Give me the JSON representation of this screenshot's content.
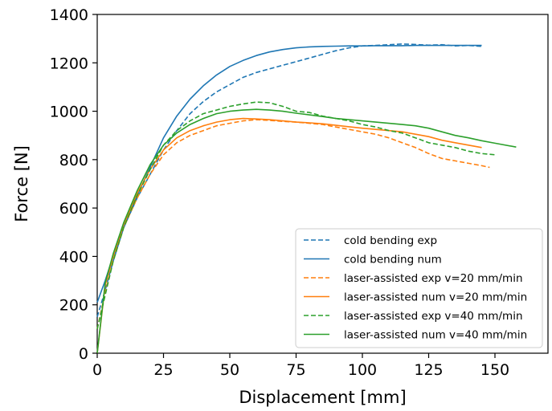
{
  "chart_data": {
    "type": "line",
    "title": "",
    "xlabel": "Displacement [mm]",
    "ylabel": "Force [N]",
    "xlim": [
      0,
      170
    ],
    "ylim": [
      0,
      1400
    ],
    "xticks": [
      0,
      25,
      50,
      75,
      100,
      125,
      150
    ],
    "yticks": [
      0,
      200,
      400,
      600,
      800,
      1000,
      1200,
      1400
    ],
    "grid": false,
    "legend_position": "lower-right",
    "series": [
      {
        "name": "cold bending exp",
        "color": "#1f77b4",
        "style": "dashed",
        "x": [
          0,
          3,
          6,
          10,
          15,
          20,
          25,
          30,
          35,
          40,
          45,
          50,
          55,
          60,
          65,
          70,
          75,
          80,
          85,
          90,
          95,
          100,
          105,
          110,
          115,
          120,
          125,
          130,
          135,
          140,
          145
        ],
        "y": [
          150,
          260,
          380,
          520,
          640,
          740,
          840,
          920,
          990,
          1040,
          1080,
          1110,
          1140,
          1160,
          1175,
          1190,
          1205,
          1220,
          1235,
          1250,
          1262,
          1270,
          1272,
          1275,
          1278,
          1276,
          1273,
          1275,
          1270,
          1272,
          1268
        ]
      },
      {
        "name": "cold bending num",
        "color": "#1f77b4",
        "style": "solid",
        "x": [
          0,
          3,
          6,
          10,
          15,
          20,
          25,
          30,
          35,
          40,
          45,
          50,
          55,
          60,
          65,
          70,
          75,
          80,
          85,
          90,
          95,
          100,
          105,
          110,
          115,
          120,
          125,
          130,
          135,
          140,
          145
        ],
        "y": [
          210,
          300,
          400,
          520,
          650,
          770,
          890,
          980,
          1050,
          1105,
          1150,
          1185,
          1210,
          1230,
          1245,
          1255,
          1262,
          1266,
          1268,
          1269,
          1270,
          1270,
          1271,
          1271,
          1271,
          1272,
          1272,
          1272,
          1272,
          1272,
          1272
        ]
      },
      {
        "name": "laser-assisted exp v=20 mm/min",
        "color": "#ff7f0e",
        "style": "dashed",
        "x": [
          0,
          3,
          6,
          10,
          15,
          20,
          25,
          30,
          35,
          40,
          45,
          50,
          55,
          60,
          65,
          70,
          75,
          80,
          85,
          90,
          95,
          100,
          105,
          110,
          115,
          120,
          125,
          130,
          135,
          140,
          145,
          148
        ],
        "y": [
          100,
          250,
          380,
          520,
          640,
          740,
          820,
          870,
          900,
          920,
          940,
          950,
          960,
          965,
          962,
          958,
          955,
          950,
          945,
          935,
          925,
          915,
          905,
          890,
          870,
          850,
          825,
          805,
          795,
          785,
          775,
          768
        ]
      },
      {
        "name": "laser-assisted num v=20 mm/min",
        "color": "#ff7f0e",
        "style": "solid",
        "x": [
          0,
          3,
          6,
          10,
          15,
          20,
          25,
          30,
          35,
          40,
          45,
          50,
          55,
          60,
          65,
          70,
          75,
          80,
          85,
          90,
          95,
          100,
          105,
          110,
          115,
          120,
          125,
          130,
          135,
          140,
          145
        ],
        "y": [
          0,
          280,
          400,
          530,
          660,
          760,
          840,
          890,
          920,
          940,
          955,
          965,
          970,
          968,
          965,
          960,
          955,
          952,
          948,
          942,
          936,
          930,
          925,
          920,
          915,
          905,
          895,
          880,
          870,
          860,
          850
        ]
      },
      {
        "name": "laser-assisted exp v=40 mm/min",
        "color": "#2ca02c",
        "style": "dashed",
        "x": [
          0,
          3,
          6,
          10,
          15,
          20,
          25,
          30,
          35,
          40,
          45,
          50,
          55,
          60,
          65,
          70,
          75,
          80,
          85,
          90,
          95,
          100,
          105,
          110,
          115,
          120,
          125,
          130,
          135,
          140,
          145,
          150
        ],
        "y": [
          100,
          240,
          380,
          520,
          650,
          760,
          860,
          920,
          960,
          990,
          1005,
          1020,
          1030,
          1038,
          1035,
          1020,
          1000,
          995,
          980,
          970,
          960,
          945,
          935,
          920,
          910,
          890,
          870,
          860,
          850,
          835,
          825,
          820
        ]
      },
      {
        "name": "laser-assisted num v=40 mm/min",
        "color": "#2ca02c",
        "style": "solid",
        "x": [
          0,
          3,
          6,
          10,
          15,
          20,
          25,
          30,
          35,
          40,
          45,
          50,
          55,
          60,
          65,
          70,
          75,
          80,
          85,
          90,
          95,
          100,
          105,
          110,
          115,
          120,
          125,
          130,
          135,
          140,
          145,
          150,
          158
        ],
        "y": [
          0,
          290,
          410,
          540,
          670,
          780,
          860,
          910,
          945,
          970,
          990,
          1000,
          1005,
          1008,
          1005,
          1000,
          992,
          985,
          978,
          970,
          965,
          960,
          955,
          950,
          945,
          940,
          930,
          915,
          900,
          890,
          878,
          868,
          852
        ]
      }
    ]
  }
}
